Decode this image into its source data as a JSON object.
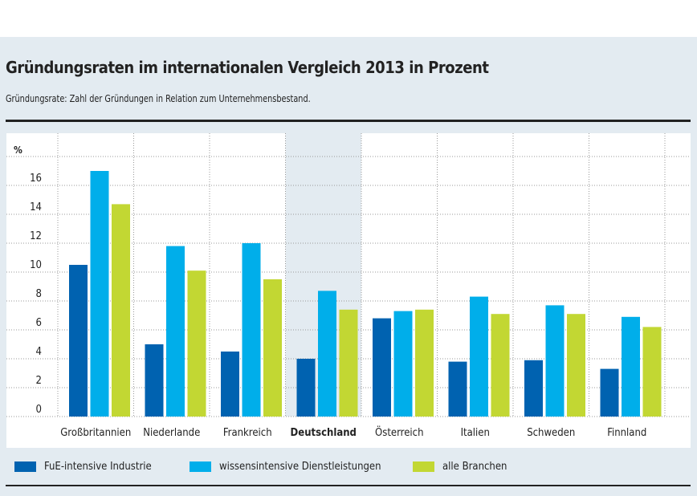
{
  "title": "Gründungsraten im internationalen Vergleich 2013 in Prozent",
  "subtitle": "Gründungsrate: Zahl der Gründungen in Relation zum Unternehmensbestand.",
  "chart_data": {
    "type": "bar",
    "title": "Gründungsraten im internationalen Vergleich 2013 in Prozent",
    "ylabel": "%",
    "ylim": [
      0,
      18
    ],
    "yticks": [
      0,
      2,
      4,
      6,
      8,
      10,
      12,
      14,
      16
    ],
    "grid": true,
    "highlight": "Deutschland",
    "categories": [
      "Großbritannien",
      "Niederlande",
      "Frankreich",
      "Deutschland",
      "Österreich",
      "Italien",
      "Schweden",
      "Finnland"
    ],
    "series": [
      {
        "name": "FuE-intensive Industrie",
        "color": "#0062b0",
        "values": [
          10.5,
          5.0,
          4.5,
          4.0,
          6.8,
          3.8,
          3.9,
          3.3
        ]
      },
      {
        "name": "wissensintensive Dienstleistungen",
        "color": "#00aeea",
        "values": [
          17.0,
          11.8,
          12.0,
          8.7,
          7.3,
          8.3,
          7.7,
          6.9
        ]
      },
      {
        "name": "alle Branchen",
        "color": "#c2d733",
        "values": [
          14.7,
          10.1,
          9.5,
          7.4,
          7.4,
          7.1,
          7.1,
          6.2
        ]
      }
    ],
    "legend": "bottom"
  }
}
